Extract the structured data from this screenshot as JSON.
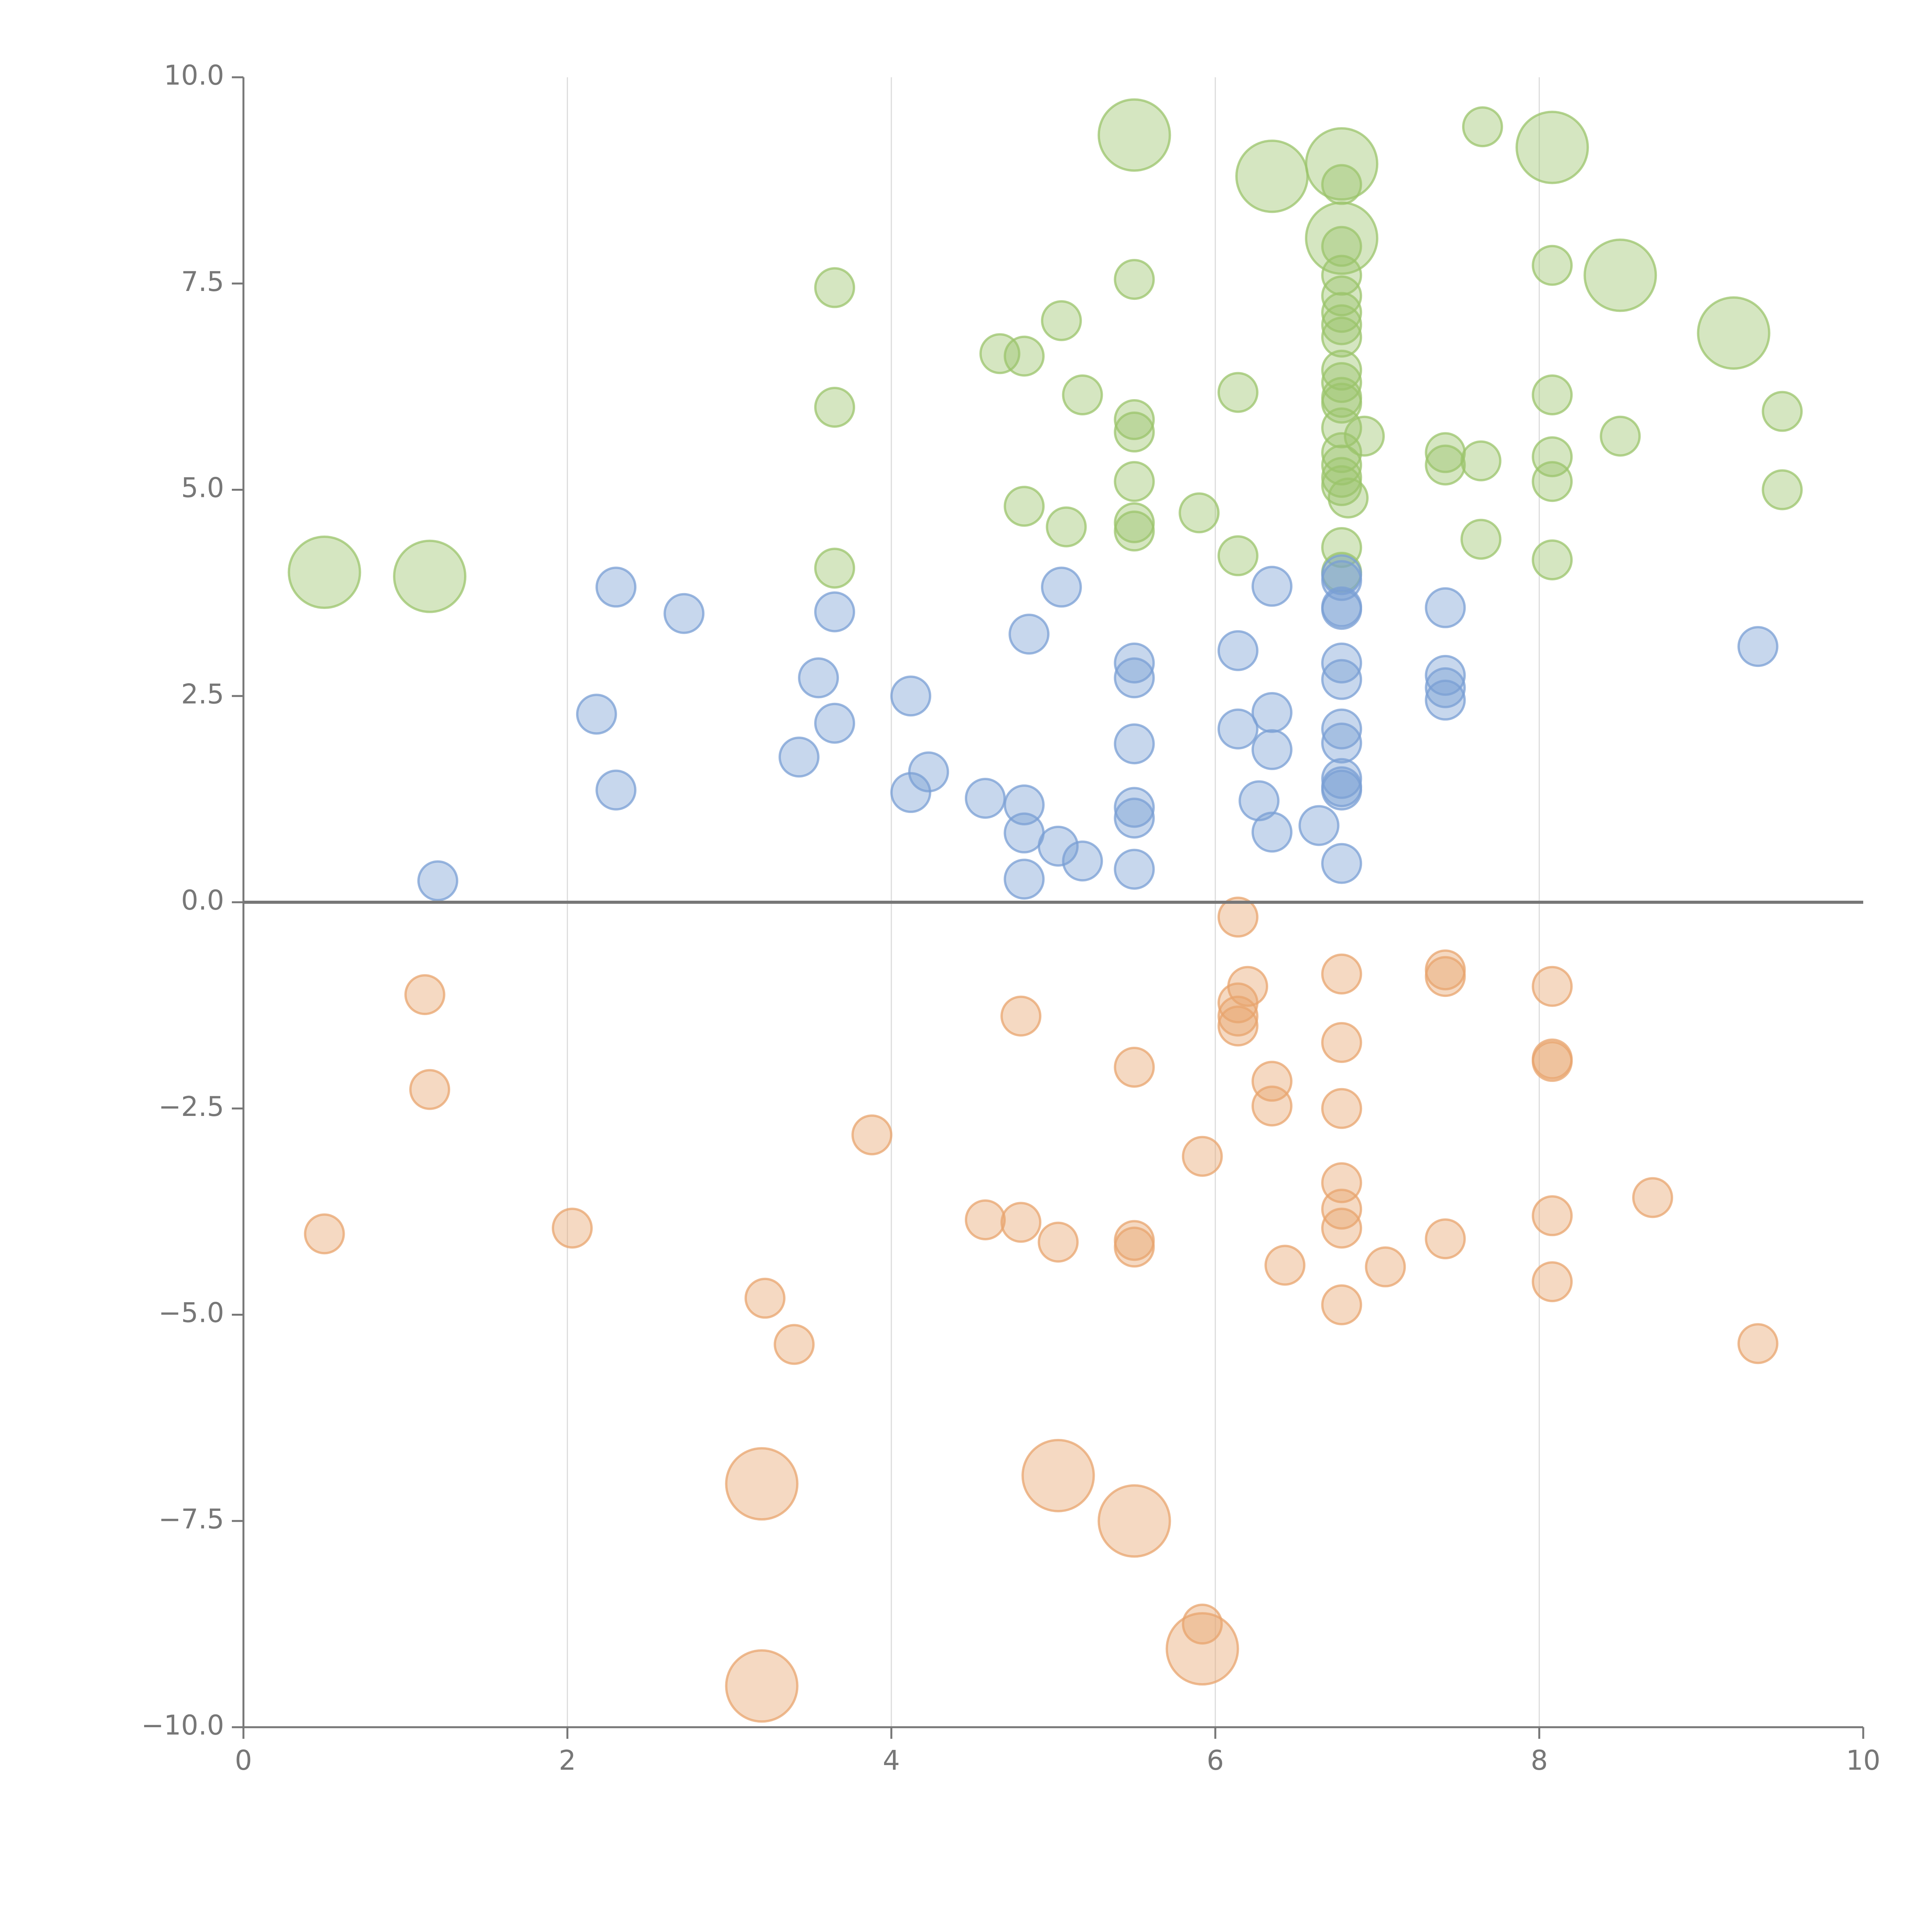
{
  "chart_data": {
    "type": "scatter",
    "title": "",
    "xlabel": "",
    "ylabel": "",
    "xlim": [
      0,
      10
    ],
    "ylim": [
      -10,
      10
    ],
    "x_ticks": [
      0,
      2,
      4,
      6,
      8,
      10
    ],
    "x_tick_labels": [
      "0",
      "2",
      "4",
      "6",
      "8",
      "10"
    ],
    "y_ticks": [
      10,
      7.5,
      5,
      2.5,
      0,
      -2.5,
      -5,
      -7.5,
      -10
    ],
    "y_tick_labels": [
      "10.0",
      "7.5",
      "5.0",
      "2.5",
      "0.0",
      "−2.5",
      "−5.0",
      "−7.5",
      "−10.0"
    ],
    "grid": "vertical",
    "zero_line": true,
    "legend": "none",
    "series": [
      {
        "name": "green",
        "color": "#9bc46b",
        "points": [
          [
            5.5,
            9.3,
            2
          ],
          [
            6.35,
            8.8,
            2
          ],
          [
            6.78,
            8.95,
            2
          ],
          [
            8.08,
            9.15,
            2
          ],
          [
            6.78,
            8.05,
            2
          ],
          [
            8.5,
            7.6,
            2
          ],
          [
            9.2,
            6.9,
            2
          ],
          [
            0.5,
            4.0,
            2
          ],
          [
            1.15,
            3.95,
            2
          ],
          [
            7.65,
            9.4,
            1
          ],
          [
            3.65,
            7.45,
            1
          ],
          [
            3.65,
            6.0,
            1
          ],
          [
            3.65,
            4.05,
            1
          ],
          [
            5.5,
            7.55,
            1
          ],
          [
            5.05,
            7.05,
            1
          ],
          [
            4.67,
            6.65,
            1
          ],
          [
            4.82,
            6.62,
            1
          ],
          [
            5.18,
            6.15,
            1
          ],
          [
            5.5,
            5.85,
            1
          ],
          [
            5.5,
            5.7,
            1
          ],
          [
            5.5,
            5.1,
            1
          ],
          [
            5.5,
            4.6,
            1
          ],
          [
            5.5,
            4.5,
            1
          ],
          [
            5.08,
            4.55,
            1
          ],
          [
            4.82,
            4.8,
            1
          ],
          [
            5.9,
            4.72,
            1
          ],
          [
            6.14,
            6.18,
            1
          ],
          [
            6.14,
            4.2,
            1
          ],
          [
            6.78,
            8.7,
            1
          ],
          [
            6.78,
            7.95,
            1
          ],
          [
            6.78,
            7.6,
            1
          ],
          [
            6.78,
            7.35,
            1
          ],
          [
            6.78,
            7.15,
            1
          ],
          [
            6.78,
            7.0,
            1
          ],
          [
            6.78,
            6.85,
            1
          ],
          [
            6.78,
            6.45,
            1
          ],
          [
            6.78,
            6.3,
            1
          ],
          [
            6.78,
            6.12,
            1
          ],
          [
            6.78,
            6.05,
            1
          ],
          [
            6.78,
            5.75,
            1
          ],
          [
            6.78,
            5.45,
            1
          ],
          [
            6.78,
            5.3,
            1
          ],
          [
            6.78,
            5.15,
            1
          ],
          [
            6.78,
            5.05,
            1
          ],
          [
            6.82,
            4.9,
            1
          ],
          [
            6.92,
            5.65,
            1
          ],
          [
            6.78,
            4.3,
            1
          ],
          [
            6.78,
            4.0,
            1
          ],
          [
            7.42,
            5.45,
            1
          ],
          [
            7.42,
            5.3,
            1
          ],
          [
            7.64,
            5.35,
            1
          ],
          [
            7.64,
            4.4,
            1
          ],
          [
            8.08,
            7.72,
            1
          ],
          [
            8.08,
            6.15,
            1
          ],
          [
            8.08,
            5.4,
            1
          ],
          [
            8.08,
            5.1,
            1
          ],
          [
            8.08,
            4.15,
            1
          ],
          [
            8.5,
            5.65,
            1
          ],
          [
            9.5,
            5.95,
            1
          ],
          [
            9.5,
            5.0,
            1
          ]
        ]
      },
      {
        "name": "blue",
        "color": "#7a9fd4",
        "points": [
          [
            2.3,
            3.82,
            1
          ],
          [
            2.72,
            3.5,
            1
          ],
          [
            2.18,
            2.28,
            1
          ],
          [
            2.3,
            1.36,
            1
          ],
          [
            1.2,
            0.26,
            1
          ],
          [
            3.65,
            3.52,
            1
          ],
          [
            3.55,
            2.72,
            1
          ],
          [
            3.65,
            2.17,
            1
          ],
          [
            3.43,
            1.76,
            1
          ],
          [
            4.12,
            2.5,
            1
          ],
          [
            4.12,
            1.33,
            1
          ],
          [
            4.23,
            1.58,
            1
          ],
          [
            4.58,
            1.26,
            1
          ],
          [
            4.82,
            1.18,
            1
          ],
          [
            4.82,
            0.84,
            1
          ],
          [
            4.82,
            0.28,
            1
          ],
          [
            5.03,
            0.68,
            1
          ],
          [
            5.18,
            0.5,
            1
          ],
          [
            4.85,
            3.25,
            1
          ],
          [
            5.05,
            3.82,
            1
          ],
          [
            5.5,
            2.9,
            1
          ],
          [
            5.5,
            2.72,
            1
          ],
          [
            5.5,
            1.92,
            1
          ],
          [
            5.5,
            1.15,
            1
          ],
          [
            5.5,
            1.02,
            1
          ],
          [
            5.5,
            0.4,
            1
          ],
          [
            6.14,
            3.05,
            1
          ],
          [
            6.14,
            2.1,
            1
          ],
          [
            6.27,
            1.23,
            1
          ],
          [
            6.35,
            3.83,
            1
          ],
          [
            6.35,
            2.3,
            1
          ],
          [
            6.35,
            1.85,
            1
          ],
          [
            6.35,
            0.85,
            1
          ],
          [
            6.64,
            0.93,
            1
          ],
          [
            6.78,
            3.97,
            1
          ],
          [
            6.78,
            3.9,
            1
          ],
          [
            6.78,
            3.58,
            1
          ],
          [
            6.78,
            3.55,
            1
          ],
          [
            6.78,
            2.9,
            1
          ],
          [
            6.78,
            2.7,
            1
          ],
          [
            6.78,
            2.1,
            1
          ],
          [
            6.78,
            1.93,
            1
          ],
          [
            6.78,
            1.5,
            1
          ],
          [
            6.78,
            1.4,
            1
          ],
          [
            6.78,
            1.36,
            1
          ],
          [
            6.78,
            0.47,
            1
          ],
          [
            7.42,
            3.57,
            1
          ],
          [
            7.42,
            2.75,
            1
          ],
          [
            7.42,
            2.6,
            1
          ],
          [
            7.42,
            2.45,
            1
          ],
          [
            9.35,
            3.1,
            1
          ]
        ]
      },
      {
        "name": "orange",
        "color": "#e8a46e",
        "points": [
          [
            6.14,
            -0.18,
            1
          ],
          [
            1.12,
            -1.12,
            1
          ],
          [
            1.15,
            -2.27,
            1
          ],
          [
            0.5,
            -4.02,
            1
          ],
          [
            2.03,
            -3.95,
            1
          ],
          [
            3.88,
            -2.82,
            1
          ],
          [
            4.8,
            -1.38,
            1
          ],
          [
            5.5,
            -2.0,
            1
          ],
          [
            6.2,
            -1.02,
            1
          ],
          [
            6.14,
            -1.22,
            1
          ],
          [
            6.14,
            -1.38,
            1
          ],
          [
            6.14,
            -1.5,
            1
          ],
          [
            6.35,
            -2.17,
            1
          ],
          [
            6.35,
            -2.47,
            1
          ],
          [
            6.78,
            -0.87,
            1
          ],
          [
            6.78,
            -1.7,
            1
          ],
          [
            6.78,
            -2.5,
            1
          ],
          [
            7.42,
            -0.82,
            1
          ],
          [
            7.42,
            -0.9,
            1
          ],
          [
            8.08,
            -1.02,
            1
          ],
          [
            8.08,
            -1.9,
            1
          ],
          [
            8.08,
            -1.93,
            1
          ],
          [
            5.92,
            -3.08,
            1
          ],
          [
            4.58,
            -3.85,
            1
          ],
          [
            4.8,
            -3.88,
            1
          ],
          [
            5.03,
            -4.12,
            1
          ],
          [
            5.5,
            -4.1,
            1
          ],
          [
            5.5,
            -4.18,
            1
          ],
          [
            6.43,
            -4.4,
            1
          ],
          [
            6.78,
            -3.4,
            1
          ],
          [
            6.78,
            -3.72,
            1
          ],
          [
            6.78,
            -3.95,
            1
          ],
          [
            6.78,
            -4.88,
            1
          ],
          [
            7.05,
            -4.42,
            1
          ],
          [
            7.42,
            -4.08,
            1
          ],
          [
            8.08,
            -3.8,
            1
          ],
          [
            8.08,
            -4.6,
            1
          ],
          [
            8.7,
            -3.58,
            1
          ],
          [
            3.22,
            -4.8,
            1
          ],
          [
            3.4,
            -5.36,
            1
          ],
          [
            9.35,
            -5.35,
            1
          ],
          [
            5.92,
            -8.75,
            1
          ],
          [
            3.2,
            -7.05,
            2
          ],
          [
            5.03,
            -6.95,
            2
          ],
          [
            5.5,
            -7.5,
            2
          ],
          [
            5.92,
            -9.05,
            2
          ],
          [
            3.2,
            -9.5,
            2
          ]
        ]
      }
    ]
  }
}
